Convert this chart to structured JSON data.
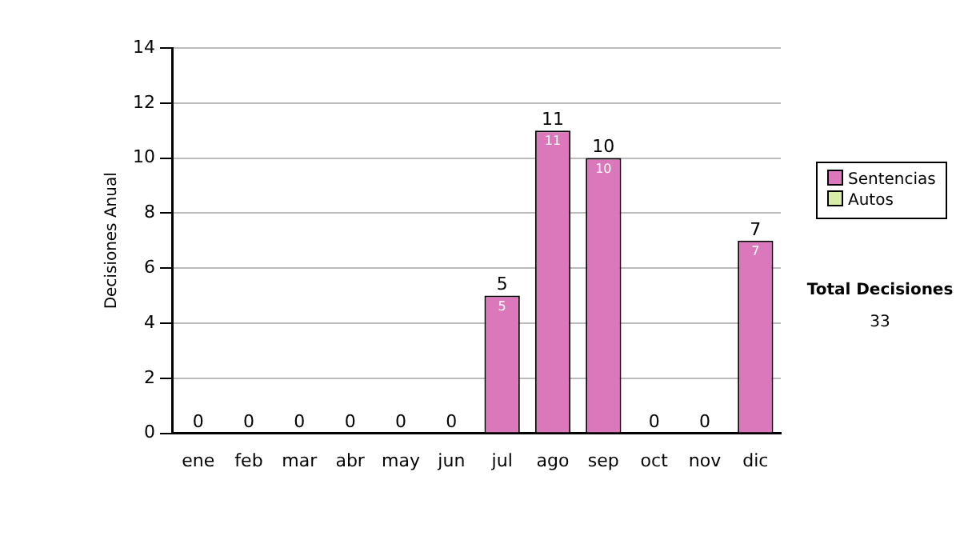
{
  "chart_data": {
    "type": "bar",
    "stacked": true,
    "ylabel": "Decisiones Anual",
    "categories": [
      "ene",
      "feb",
      "mar",
      "abr",
      "may",
      "jun",
      "jul",
      "ago",
      "sep",
      "oct",
      "nov",
      "dic"
    ],
    "series": [
      {
        "name": "Sentencias",
        "color": "#da78bb",
        "values": [
          0,
          0,
          0,
          0,
          0,
          0,
          5,
          11,
          10,
          0,
          0,
          7
        ],
        "value_labels": [
          null,
          null,
          null,
          null,
          null,
          null,
          "5",
          "11",
          "10",
          null,
          null,
          "7"
        ]
      },
      {
        "name": "Autos",
        "color": "#d8eba8",
        "values": [
          0,
          0,
          0,
          0,
          0,
          0,
          0,
          0,
          0,
          0,
          0,
          0
        ]
      }
    ],
    "totals": [
      "0",
      "0",
      "0",
      "0",
      "0",
      "0",
      "5",
      "11",
      "10",
      "0",
      "0",
      "7"
    ],
    "ylim": [
      0,
      14
    ],
    "yticks": [
      0,
      2,
      4,
      6,
      8,
      10,
      12,
      14
    ],
    "grid": "y",
    "legend": "right",
    "annotations": [
      "Total Decisiones",
      "33"
    ]
  }
}
